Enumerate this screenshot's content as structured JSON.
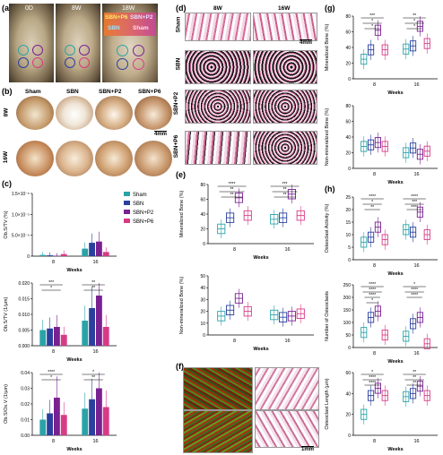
{
  "panels": {
    "a": {
      "label": "(a)",
      "times": [
        "0D",
        "8W",
        "18W"
      ],
      "legend": {
        "sbn_p6": "SBN+P6",
        "sbn_p2": "SBN+P2",
        "sbn": "SBN",
        "sham": "Sham"
      }
    },
    "b": {
      "label": "(b)",
      "rows": [
        "8W",
        "16W"
      ],
      "cols": [
        "Sham",
        "SBN",
        "SBN+P2",
        "SBN+P6"
      ],
      "scale": "4mm"
    },
    "c": {
      "label": "(c)"
    },
    "d": {
      "label": "(d)",
      "cols": [
        "8W",
        "16W"
      ],
      "rows": [
        "Sham",
        "SBN",
        "SBN+P2",
        "SBN+P6"
      ],
      "scale": "4mm"
    },
    "e": {
      "label": "(e)"
    },
    "f": {
      "label": "(f)",
      "scale": "1mm"
    },
    "g": {
      "label": "(g)"
    },
    "h": {
      "label": "(h)"
    }
  },
  "colors": {
    "sham": "#2aa3a8",
    "sbn": "#2b3f9e",
    "sbn_p2": "#7a2192",
    "sbn_p6": "#d83a86"
  },
  "legend_c": [
    "Sham",
    "SBN",
    "SBN+P2",
    "SBN+P6"
  ],
  "chart_data": [
    {
      "id": "c1",
      "type": "bar",
      "ylabel": "Ob.S/TV (%)",
      "yticks": [
        "0",
        "5.0×10⁻⁶",
        "1.0×10⁻⁵",
        "1.5×10⁻⁵"
      ],
      "ylim": [
        0,
        1.5e-05
      ],
      "categories": [
        "8",
        "16"
      ],
      "xlabel": "Weeks",
      "series": [
        {
          "name": "Sham",
          "values": [
            3e-07,
            1.8e-06
          ]
        },
        {
          "name": "SBN",
          "values": [
            2e-07,
            3.2e-06
          ]
        },
        {
          "name": "SBN+P2",
          "values": [
            1e-07,
            3.5e-06
          ]
        },
        {
          "name": "SBN+P6",
          "values": [
            5e-07,
            1e-06
          ]
        }
      ],
      "stars": []
    },
    {
      "id": "c2",
      "type": "bar",
      "ylabel": "Ob.S/TV (1/µm)",
      "yticks": [
        "0.000",
        "0.005",
        "0.010",
        "0.015",
        "0.020"
      ],
      "ylim": [
        0,
        0.02
      ],
      "categories": [
        "8",
        "16"
      ],
      "xlabel": "Weeks",
      "series": [
        {
          "name": "Sham",
          "values": [
            0.005,
            0.008
          ]
        },
        {
          "name": "SBN",
          "values": [
            0.0055,
            0.012
          ]
        },
        {
          "name": "SBN+P2",
          "values": [
            0.006,
            0.016
          ]
        },
        {
          "name": "SBN+P6",
          "values": [
            0.0035,
            0.006
          ]
        }
      ],
      "stars": [
        "***",
        "*",
        "**",
        "**"
      ]
    },
    {
      "id": "c3",
      "type": "bar",
      "ylabel": "Ob.S/Os.V (1/µm)",
      "yticks": [
        "0.00",
        "0.01",
        "0.02",
        "0.03",
        "0.04"
      ],
      "ylim": [
        0,
        0.04
      ],
      "categories": [
        "8",
        "16"
      ],
      "xlabel": "Weeks",
      "series": [
        {
          "name": "Sham",
          "values": [
            0.01,
            0.017
          ]
        },
        {
          "name": "SBN",
          "values": [
            0.014,
            0.023
          ]
        },
        {
          "name": "SBN+P2",
          "values": [
            0.024,
            0.03
          ]
        },
        {
          "name": "SBN+P6",
          "values": [
            0.013,
            0.018
          ]
        }
      ],
      "stars": [
        "****",
        "*",
        "*",
        "**"
      ]
    },
    {
      "id": "e1",
      "type": "box",
      "ylabel": "Mineralized Bone (%)",
      "yticks": [
        "0",
        "20",
        "40",
        "60",
        "80"
      ],
      "ylim": [
        0,
        80
      ],
      "categories": [
        "8",
        "16"
      ],
      "xlabel": "Weeks",
      "series": [
        {
          "name": "Sham",
          "values": [
            20,
            33
          ]
        },
        {
          "name": "SBN",
          "values": [
            35,
            35
          ]
        },
        {
          "name": "SBN+P2",
          "values": [
            62,
            67
          ]
        },
        {
          "name": "SBN+P6",
          "values": [
            38,
            38
          ]
        }
      ],
      "stars": [
        "****",
        "**",
        "**",
        "***",
        "**",
        "**"
      ]
    },
    {
      "id": "e2",
      "type": "box",
      "ylabel": "Non-mineralized Bone (%)",
      "yticks": [
        "0",
        "10",
        "20",
        "30",
        "40",
        "50"
      ],
      "ylim": [
        0,
        50
      ],
      "categories": [
        "8",
        "16"
      ],
      "xlabel": "Weeks",
      "series": [
        {
          "name": "Sham",
          "values": [
            16,
            17
          ]
        },
        {
          "name": "SBN",
          "values": [
            21,
            15
          ]
        },
        {
          "name": "SBN+P2",
          "values": [
            31,
            16
          ]
        },
        {
          "name": "SBN+P6",
          "values": [
            20,
            18
          ]
        }
      ],
      "stars": []
    },
    {
      "id": "g1",
      "type": "box",
      "ylabel": "Mineralized Bone (%)",
      "yticks": [
        "0",
        "20",
        "40",
        "60",
        "80"
      ],
      "ylim": [
        0,
        80
      ],
      "categories": [
        "8",
        "16"
      ],
      "xlabel": "Weeks",
      "series": [
        {
          "name": "Sham",
          "values": [
            25,
            38
          ]
        },
        {
          "name": "SBN",
          "values": [
            37,
            42
          ]
        },
        {
          "name": "SBN+P2",
          "values": [
            62,
            67
          ]
        },
        {
          "name": "SBN+P6",
          "values": [
            37,
            45
          ]
        }
      ],
      "stars": [
        "***",
        "*",
        "*",
        "**",
        "*",
        "*"
      ]
    },
    {
      "id": "g2",
      "type": "box",
      "ylabel": "Non-mineralized Bone (%)",
      "yticks": [
        "0",
        "20",
        "40",
        "60",
        "80"
      ],
      "ylim": [
        0,
        80
      ],
      "categories": [
        "8",
        "16"
      ],
      "xlabel": "Weeks",
      "series": [
        {
          "name": "Sham",
          "values": [
            28,
            20
          ]
        },
        {
          "name": "SBN",
          "values": [
            30,
            26
          ]
        },
        {
          "name": "SBN+P2",
          "values": [
            33,
            18
          ]
        },
        {
          "name": "SBN+P6",
          "values": [
            28,
            22
          ]
        }
      ],
      "stars": []
    },
    {
      "id": "h1",
      "type": "box",
      "ylabel": "Osteoclast Activity (%)",
      "yticks": [
        "0",
        "5",
        "10",
        "15",
        "20",
        "25"
      ],
      "ylim": [
        0,
        25
      ],
      "categories": [
        "8",
        "16"
      ],
      "xlabel": "Weeks",
      "series": [
        {
          "name": "Sham",
          "values": [
            7,
            12
          ]
        },
        {
          "name": "SBN",
          "values": [
            9,
            11
          ]
        },
        {
          "name": "SBN+P2",
          "values": [
            13,
            19
          ]
        },
        {
          "name": "SBN+P6",
          "values": [
            8,
            10
          ]
        }
      ],
      "stars": [
        "****",
        "*",
        "**",
        "****",
        "***",
        "****"
      ]
    },
    {
      "id": "h2",
      "type": "box",
      "ylabel": "Number of Osteoclasts",
      "yticks": [
        "0",
        "50",
        "100",
        "150",
        "200",
        "250"
      ],
      "ylim": [
        0,
        250
      ],
      "categories": [
        "8",
        "16"
      ],
      "xlabel": "Weeks",
      "series": [
        {
          "name": "Sham",
          "values": [
            60,
            45
          ]
        },
        {
          "name": "SBN",
          "values": [
            120,
            95
          ]
        },
        {
          "name": "SBN+P2",
          "values": [
            145,
            120
          ]
        },
        {
          "name": "SBN+P6",
          "values": [
            50,
            15
          ]
        }
      ],
      "stars": [
        "****",
        "****",
        "****",
        "*",
        "*",
        "****",
        "****"
      ]
    },
    {
      "id": "h3",
      "type": "box",
      "ylabel": "Osteoclast Length (µm)",
      "yticks": [
        "0",
        "20",
        "40",
        "60"
      ],
      "ylim": [
        0,
        60
      ],
      "categories": [
        "8",
        "16"
      ],
      "xlabel": "Weeks",
      "series": [
        {
          "name": "Sham",
          "values": [
            20,
            37
          ]
        },
        {
          "name": "SBN",
          "values": [
            38,
            40
          ]
        },
        {
          "name": "SBN+P2",
          "values": [
            45,
            47
          ]
        },
        {
          "name": "SBN+P6",
          "values": [
            38,
            38
          ]
        }
      ],
      "stars": [
        "*",
        "****",
        "****",
        "**",
        "**",
        "**"
      ]
    }
  ]
}
